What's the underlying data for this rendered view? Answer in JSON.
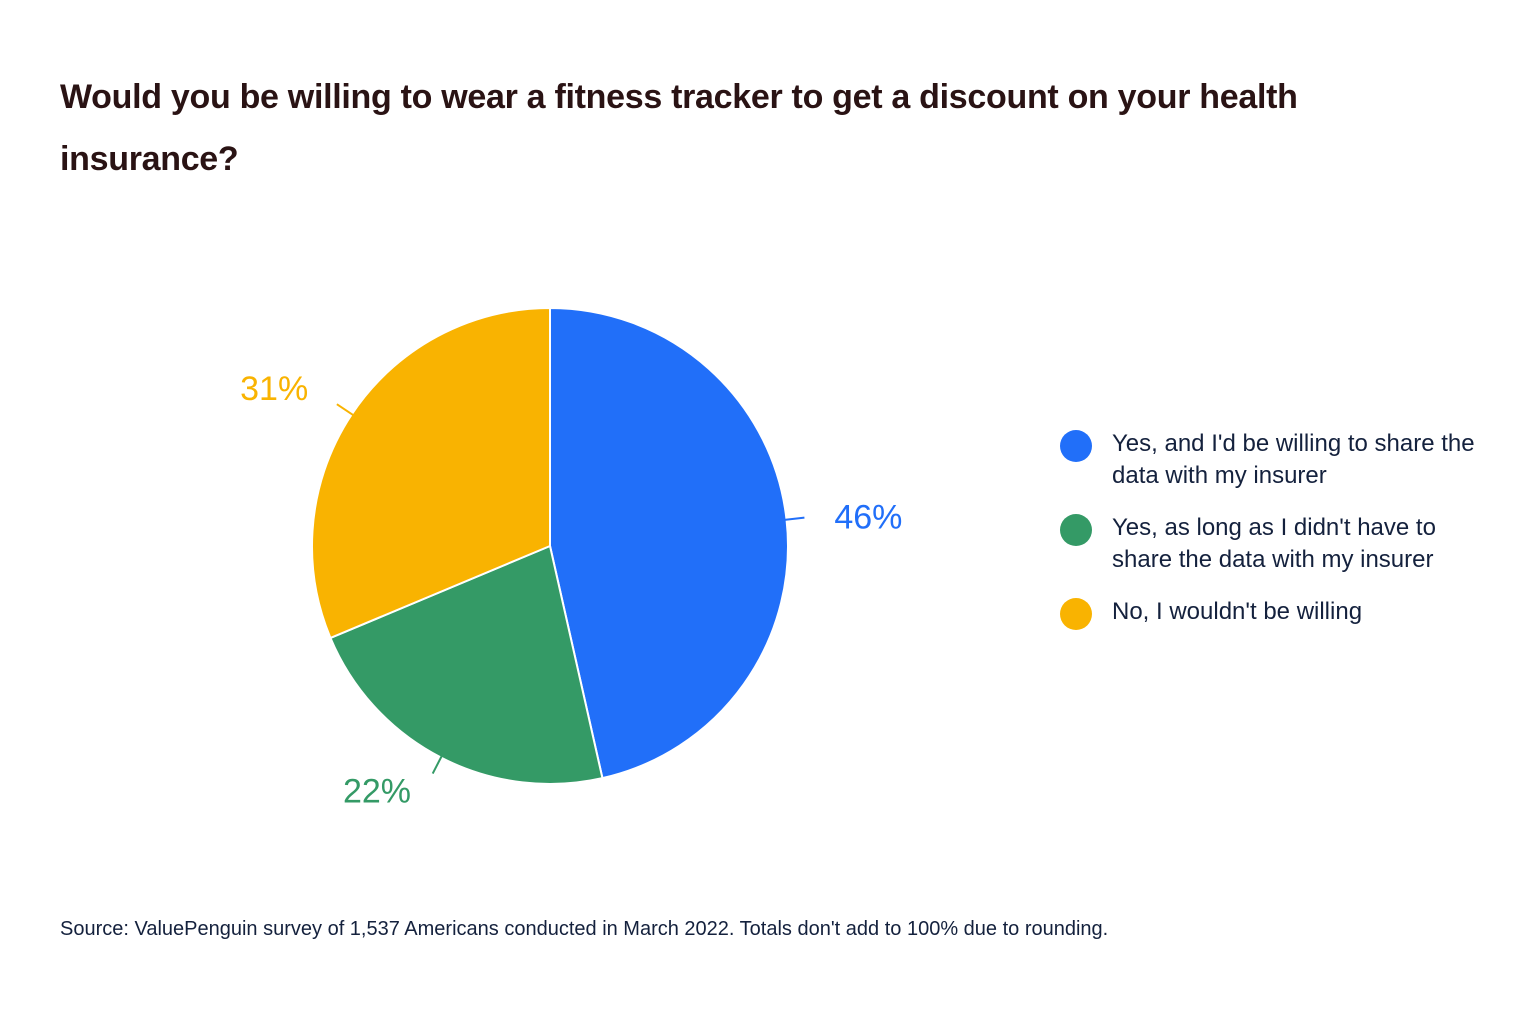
{
  "title": "Would you be willing to wear a fitness tracker to get a discount on your health insurance?",
  "source": "Source: ValuePenguin survey of 1,537 Americans conducted in March 2022. Totals don't add to 100% due to rounding.",
  "legend": [
    {
      "label": "Yes, and I'd be willing to share the data with my insurer",
      "color": "#216ff9"
    },
    {
      "label": "Yes, as long as I didn't have to share the data with my insurer",
      "color": "#349a66"
    },
    {
      "label": "No, I wouldn't be willing",
      "color": "#f9b301"
    }
  ],
  "chart_data": {
    "type": "pie",
    "title": "Would you be willing to wear a fitness tracker to get a discount on your health insurance?",
    "slices": [
      {
        "name": "Yes, and I'd be willing to share the data with my insurer",
        "value": 46,
        "label": "46%",
        "color": "#216ff9"
      },
      {
        "name": "Yes, as long as I didn't have to share the data with my insurer",
        "value": 22,
        "label": "22%",
        "color": "#349a66"
      },
      {
        "name": "No, I wouldn't be willing",
        "value": 31,
        "label": "31%",
        "color": "#f9b301"
      }
    ],
    "legend_position": "right"
  }
}
